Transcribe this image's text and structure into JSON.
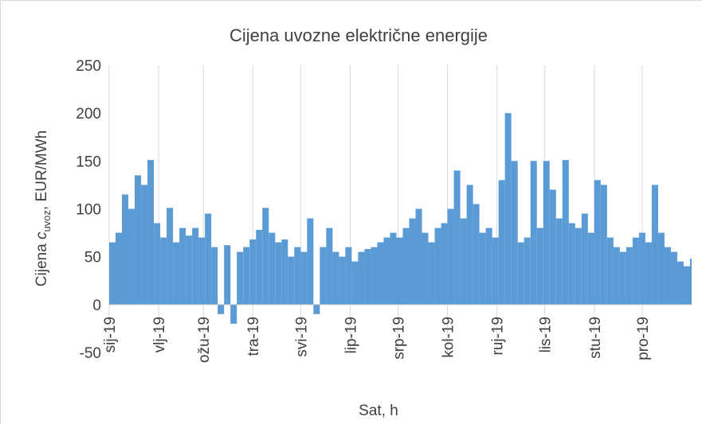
{
  "chart_data": {
    "type": "bar",
    "title": "Cijena uvozne električne energije",
    "ylabel": [
      "Cijena ",
      "c",
      "uvoz",
      ", EUR/MWh"
    ],
    "xlabel": "Sat, h",
    "color": "#5b9bd5",
    "x": [
      0,
      96,
      192,
      288,
      384,
      480,
      576,
      672,
      768,
      864,
      960,
      1056,
      1152,
      1248,
      1344,
      1440,
      1536,
      1632,
      1728,
      1824,
      1920,
      2016,
      2112,
      2208,
      2304,
      2400,
      2496,
      2592,
      2688,
      2784,
      2880,
      2976,
      3072,
      3168,
      3264,
      3360,
      3456,
      3552,
      3648,
      3744,
      3840,
      3936,
      4032,
      4128,
      4224,
      4320,
      4416,
      4512,
      4608,
      4704,
      4800,
      4896,
      4992,
      5088,
      5184,
      5280,
      5376,
      5472,
      5568,
      5664,
      5760,
      5856,
      5952,
      6048,
      6144,
      6240,
      6336,
      6432,
      6528,
      6624,
      6720,
      6816,
      6912,
      7008,
      7104,
      7200,
      7296,
      7392,
      7488,
      7584,
      7680,
      7776,
      7872,
      7968,
      8064,
      8160,
      8256,
      8352,
      8448,
      8544,
      8640,
      8736
    ],
    "values": [
      65,
      75,
      115,
      100,
      135,
      125,
      151,
      85,
      70,
      101,
      65,
      80,
      72,
      80,
      70,
      95,
      60,
      -10,
      62,
      -20,
      55,
      60,
      68,
      78,
      101,
      75,
      65,
      68,
      50,
      60,
      55,
      90,
      -10,
      60,
      80,
      55,
      50,
      60,
      45,
      55,
      58,
      60,
      65,
      70,
      75,
      70,
      80,
      90,
      100,
      75,
      65,
      80,
      85,
      100,
      140,
      90,
      125,
      105,
      75,
      80,
      70,
      130,
      200,
      150,
      65,
      70,
      150,
      80,
      150,
      120,
      90,
      151,
      85,
      80,
      95,
      75,
      130,
      125,
      70,
      60,
      55,
      60,
      70,
      75,
      65,
      125,
      75,
      60,
      55,
      45,
      40,
      48
    ],
    "xlim": [
      0,
      8760
    ],
    "xticks": [
      {
        "value": 0,
        "label": "sij-19"
      },
      {
        "value": 744,
        "label": "vlj-19"
      },
      {
        "value": 1416,
        "label": "ožu-19"
      },
      {
        "value": 2160,
        "label": "tra-19"
      },
      {
        "value": 2880,
        "label": "svi-19"
      },
      {
        "value": 3624,
        "label": "lip-19"
      },
      {
        "value": 4344,
        "label": "srp-19"
      },
      {
        "value": 5088,
        "label": "kol-19"
      },
      {
        "value": 5832,
        "label": "ruj-19"
      },
      {
        "value": 6552,
        "label": "lis-19"
      },
      {
        "value": 7296,
        "label": "stu-19"
      },
      {
        "value": 8016,
        "label": "pro-19"
      }
    ],
    "ylim": [
      -50,
      250
    ],
    "yticks": [
      -50,
      0,
      50,
      100,
      150,
      200,
      250
    ],
    "grid": true
  }
}
